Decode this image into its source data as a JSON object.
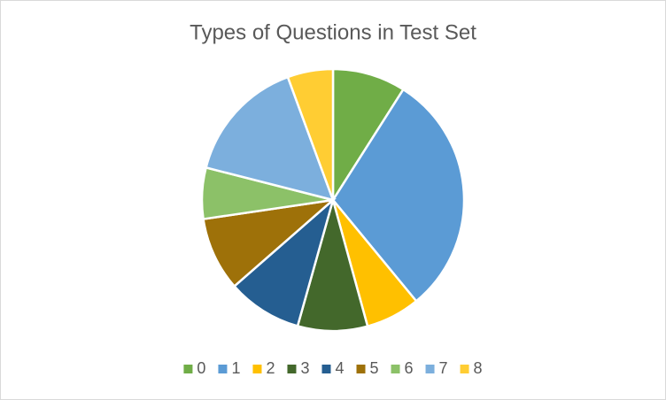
{
  "chart_data": {
    "type": "pie",
    "title": "Types of Questions in Test Set",
    "categories": [
      "0",
      "1",
      "2",
      "3",
      "4",
      "5",
      "6",
      "7",
      "8"
    ],
    "values": [
      9,
      30,
      6.7,
      8.6,
      9.2,
      9.1,
      6.3,
      15.4,
      5.6
    ],
    "colors": [
      "#70ad47",
      "#5b9bd5",
      "#ffc000",
      "#43682b",
      "#255e91",
      "#9e7109",
      "#8cc168",
      "#7cafdd",
      "#ffcd33"
    ],
    "legend": "bottom"
  }
}
